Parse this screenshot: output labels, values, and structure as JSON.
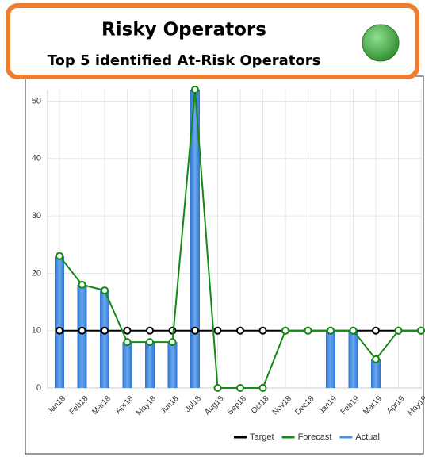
{
  "header": {
    "title": "Risky Operators",
    "subtitle": "Top 5 identified At-Risk Operators",
    "status_color": "#3cb043"
  },
  "chart_data": {
    "type": "combo",
    "categories": [
      "Jan18",
      "Feb18",
      "Mar18",
      "Apr18",
      "May18",
      "Jun18",
      "Jul18",
      "Aug18",
      "Sep18",
      "Oct18",
      "Nov18",
      "Dec18",
      "Jan19",
      "Feb19",
      "Mar19",
      "Apr19",
      "May19"
    ],
    "series": [
      {
        "name": "Target",
        "mark": "line",
        "color": "#000000",
        "values": [
          10,
          10,
          10,
          10,
          10,
          10,
          10,
          10,
          10,
          10,
          10,
          10,
          10,
          10,
          10,
          10,
          10
        ]
      },
      {
        "name": "Forecast",
        "mark": "line",
        "color": "#138a13",
        "values": [
          23,
          18,
          17,
          8,
          8,
          8,
          52,
          0,
          0,
          0,
          10,
          10,
          10,
          10,
          5,
          10,
          10
        ]
      },
      {
        "name": "Actual",
        "mark": "bar",
        "color": "#4a90e2",
        "values": [
          23,
          18,
          17,
          8,
          8,
          8,
          52,
          null,
          null,
          null,
          null,
          null,
          10,
          10,
          5,
          null,
          null
        ]
      }
    ],
    "ylim": [
      0,
      52
    ],
    "yticks": [
      0,
      10,
      20,
      30,
      40,
      50
    ],
    "grid": true,
    "legend": "bottom-right"
  }
}
